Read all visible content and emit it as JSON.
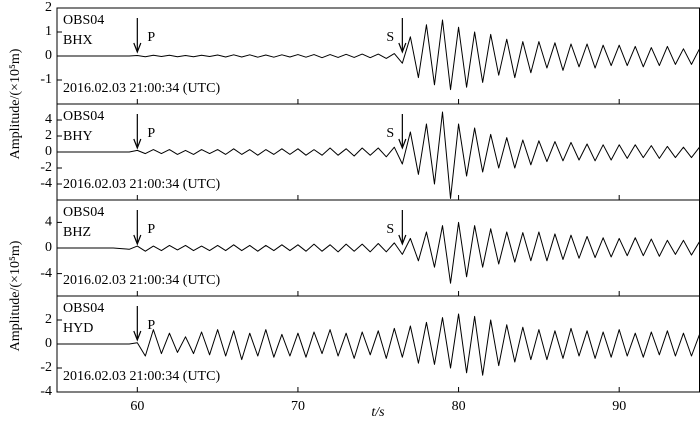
{
  "chart_data": {
    "type": "line",
    "xlabel": "t/s",
    "xlim": [
      55,
      95
    ],
    "xticks": [
      60,
      70,
      80,
      90
    ],
    "color": "#000000",
    "x": [
      55,
      55.5,
      56,
      56.5,
      57,
      57.5,
      58,
      58.5,
      59,
      59.5,
      60,
      60.5,
      61,
      61.5,
      62,
      62.5,
      63,
      63.5,
      64,
      64.5,
      65,
      65.5,
      66,
      66.5,
      67,
      67.5,
      68,
      68.5,
      69,
      69.5,
      70,
      70.5,
      71,
      71.5,
      72,
      72.5,
      73,
      73.5,
      74,
      74.5,
      75,
      75.5,
      76,
      76.5,
      77,
      77.5,
      78,
      78.5,
      79,
      79.5,
      80,
      80.5,
      81,
      81.5,
      82,
      82.5,
      83,
      83.5,
      84,
      84.5,
      85,
      85.5,
      86,
      86.5,
      87,
      87.5,
      88,
      88.5,
      89,
      89.5,
      90,
      90.5,
      91,
      91.5,
      92,
      92.5,
      93,
      93.5,
      94,
      94.5,
      95
    ],
    "panels": [
      {
        "station": "OBS04",
        "channel": "BHX",
        "date": "2016.02.03 21:00:34 (UTC)",
        "ylabel": "Amplitude/(×10⁵m)",
        "ylim": [
          -2,
          2
        ],
        "yticks": [
          -1,
          0,
          1,
          2
        ],
        "annotations": [
          {
            "text": "P",
            "x": 60
          },
          {
            "text": "S",
            "x": 76.5
          }
        ],
        "values": [
          0,
          0,
          0,
          0,
          0,
          0,
          0,
          0,
          0,
          0,
          0.02,
          -0.03,
          0.03,
          -0.02,
          0.03,
          -0.03,
          0.02,
          -0.03,
          0.03,
          -0.02,
          0.04,
          -0.04,
          0.05,
          -0.04,
          0.05,
          -0.05,
          0.04,
          -0.05,
          0.05,
          -0.04,
          0.06,
          -0.05,
          0.06,
          -0.07,
          0.06,
          -0.06,
          0.07,
          -0.06,
          0.08,
          -0.07,
          0.08,
          -0.1,
          0.1,
          -0.3,
          0.8,
          -0.9,
          1.3,
          -1.2,
          1.5,
          -1.4,
          1.2,
          -1.3,
          1.0,
          -1.1,
          0.9,
          -0.8,
          0.7,
          -0.9,
          0.6,
          -0.7,
          0.6,
          -0.5,
          0.55,
          -0.6,
          0.5,
          -0.45,
          0.5,
          -0.5,
          0.45,
          -0.4,
          0.45,
          -0.4,
          0.4,
          -0.45,
          0.35,
          -0.4,
          0.4,
          -0.35,
          0.3,
          -0.35,
          0.3
        ]
      },
      {
        "station": "OBS04",
        "channel": "BHY",
        "date": "2016.02.03 21:00:34 (UTC)",
        "ylim": [
          -6,
          6
        ],
        "yticks": [
          -4,
          -2,
          0,
          2,
          4
        ],
        "annotations": [
          {
            "text": "P",
            "x": 60
          },
          {
            "text": "S",
            "x": 76.5
          }
        ],
        "values": [
          0,
          0,
          0,
          0,
          0,
          0,
          0,
          0,
          0,
          0,
          0.2,
          -0.2,
          0.3,
          -0.2,
          0.3,
          -0.3,
          0.2,
          -0.3,
          0.3,
          -0.2,
          0.3,
          -0.3,
          0.4,
          -0.3,
          0.3,
          -0.4,
          0.3,
          -0.3,
          0.4,
          -0.3,
          0.4,
          -0.4,
          0.3,
          -0.4,
          0.5,
          -0.4,
          0.4,
          -0.5,
          0.5,
          -0.4,
          0.5,
          -0.6,
          0.6,
          -1.5,
          2.5,
          -2.8,
          3.5,
          -4,
          5,
          -5.8,
          3.5,
          -3,
          3,
          -2.5,
          2.2,
          -2,
          1.8,
          -2,
          1.5,
          -1.6,
          1.4,
          -1.2,
          1.3,
          -1.1,
          1.2,
          -1,
          1,
          -1.1,
          0.9,
          -1,
          0.9,
          -0.8,
          0.9,
          -0.7,
          0.8,
          -0.8,
          0.7,
          -0.7,
          0.6,
          -0.7,
          0.6
        ]
      },
      {
        "station": "OBS04",
        "channel": "BHZ",
        "date": "2016.02.03 21:00:34 (UTC)",
        "ylabel": "Amplitude/(×10⁵m)",
        "ylim": [
          -7.5,
          7.5
        ],
        "yticks": [
          -4,
          0,
          4
        ],
        "annotations": [
          {
            "text": "P",
            "x": 60
          },
          {
            "text": "S",
            "x": 76.5
          }
        ],
        "values": [
          0,
          0,
          0,
          0,
          0,
          0,
          0,
          0,
          -0.1,
          -0.2,
          0.3,
          -0.5,
          0.3,
          -0.4,
          0.4,
          -0.3,
          0.4,
          -0.4,
          0.3,
          -0.4,
          0.4,
          -0.4,
          0.5,
          -0.4,
          0.4,
          -0.5,
          0.4,
          -0.4,
          0.5,
          -0.4,
          0.5,
          -0.5,
          0.6,
          -0.5,
          0.5,
          -0.6,
          0.6,
          -0.5,
          0.6,
          -0.6,
          0.7,
          -0.6,
          0.8,
          -1,
          1.5,
          -2,
          2.5,
          -3,
          3.5,
          -5.5,
          4,
          -4.5,
          3.5,
          -3,
          3,
          -2.5,
          2.5,
          -2.2,
          2.4,
          -2,
          2.5,
          -2,
          2.2,
          -1.8,
          2,
          -1.6,
          1.8,
          -1.5,
          1.6,
          -1.4,
          1.5,
          -1.2,
          1.6,
          -1.2,
          1.4,
          -1.3,
          1.2,
          -1,
          1.2,
          -1.1,
          1
        ]
      },
      {
        "station": "OBS04",
        "channel": "HYD",
        "date": "2016.02.03 21:00:34 (UTC)",
        "ylim": [
          -4,
          4
        ],
        "yticks": [
          -4,
          -2,
          0,
          2
        ],
        "annotations": [
          {
            "text": "P",
            "x": 60
          }
        ],
        "values": [
          0,
          0,
          0,
          0,
          0,
          0,
          0,
          0,
          0,
          0,
          0.1,
          -1,
          1.2,
          -0.8,
          0.9,
          -0.7,
          0.6,
          -0.8,
          1,
          -0.9,
          1.2,
          -1,
          1.1,
          -1.3,
          0.9,
          -1,
          1.2,
          -1.1,
          0.8,
          -1,
          0.9,
          -1.1,
          1,
          -0.8,
          1.2,
          -1,
          0.9,
          -1.2,
          1,
          -0.9,
          1.1,
          -1.2,
          1.3,
          -1.1,
          1.5,
          -1.6,
          1.8,
          -1.7,
          2.2,
          -2,
          2.5,
          -2.4,
          2.3,
          -2.6,
          2,
          -1.8,
          1.6,
          -1.5,
          1.4,
          -1.3,
          1.2,
          -1.3,
          1.1,
          -1.2,
          1.3,
          -1,
          1.1,
          -1.2,
          1,
          -1.1,
          1.2,
          -1,
          0.9,
          -1.1,
          1,
          -0.9,
          1.1,
          -1,
          0.9,
          -1,
          0.8
        ]
      }
    ]
  }
}
